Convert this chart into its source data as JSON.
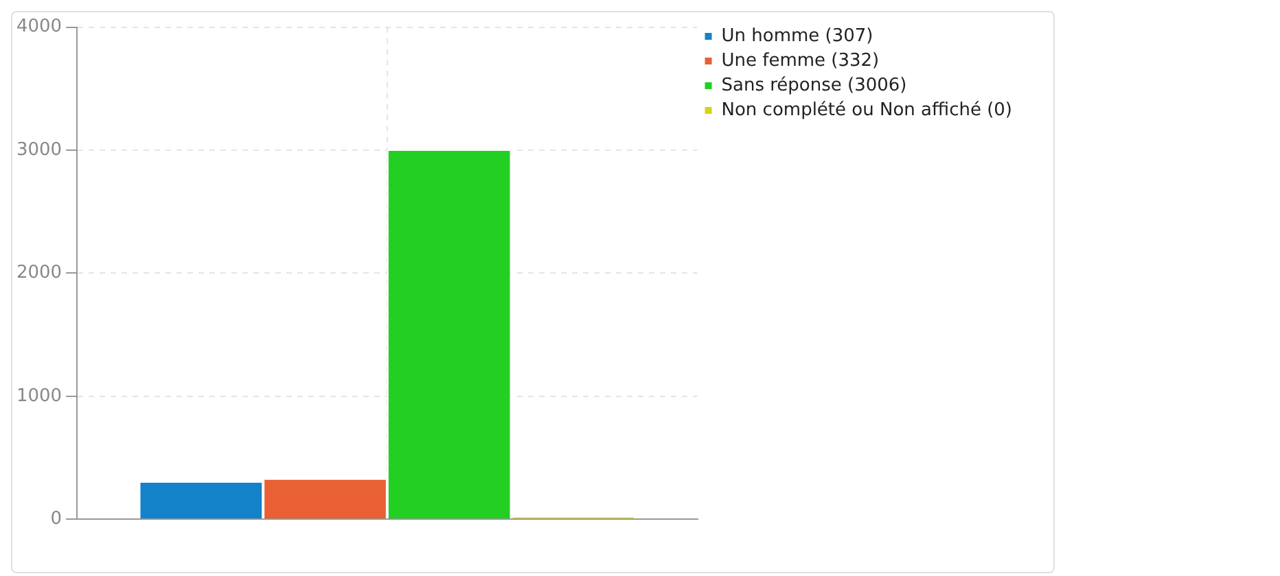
{
  "chart_data": {
    "type": "bar",
    "categories": [
      null
    ],
    "series": [
      {
        "name": "Un homme (307)",
        "color": "#1482c8",
        "values": [
          307
        ]
      },
      {
        "name": "Une femme (332)",
        "color": "#e86033",
        "values": [
          332
        ]
      },
      {
        "name": "Sans réponse (3006)",
        "color": "#22cf22",
        "values": [
          3006
        ]
      },
      {
        "name": "Non complété ou Non affiché (0)",
        "color": "#d4d414",
        "values": [
          0
        ]
      }
    ],
    "ylim": [
      0,
      4000
    ],
    "yticks": [
      0,
      1000,
      2000,
      3000,
      4000
    ],
    "grid": true,
    "legend": "top right"
  }
}
